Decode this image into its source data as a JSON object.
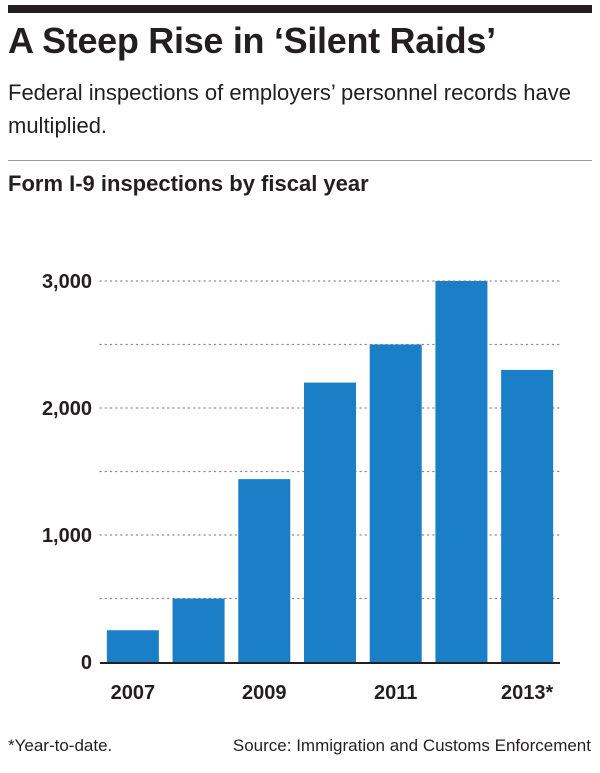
{
  "header": {
    "title": "A Steep Rise in ‘Silent Raids’",
    "subtitle": "Federal inspections of employers’ personnel records have multiplied."
  },
  "chart_data": {
    "type": "bar",
    "title": "Form I-9 inspections by fiscal year",
    "categories": [
      "2007",
      "2008",
      "2009",
      "2010",
      "2011",
      "2012",
      "2013*"
    ],
    "x_tick_labels": [
      "2007",
      "2009",
      "2011",
      "2013*"
    ],
    "values": [
      250,
      500,
      1440,
      2200,
      2500,
      3000,
      2300
    ],
    "ylim": [
      0,
      3000
    ],
    "y_ticks": [
      0,
      1000,
      2000,
      3000
    ],
    "y_tick_labels": [
      "0",
      "1,000",
      "2,000",
      "3,000"
    ],
    "grid": "dotted horizontal every 500",
    "xlabel": "",
    "ylabel": "",
    "bar_color": "#1a7fc7"
  },
  "footer": {
    "footnote": "*Year-to-date.",
    "source": "Source: Immigration and Customs Enforcement"
  }
}
